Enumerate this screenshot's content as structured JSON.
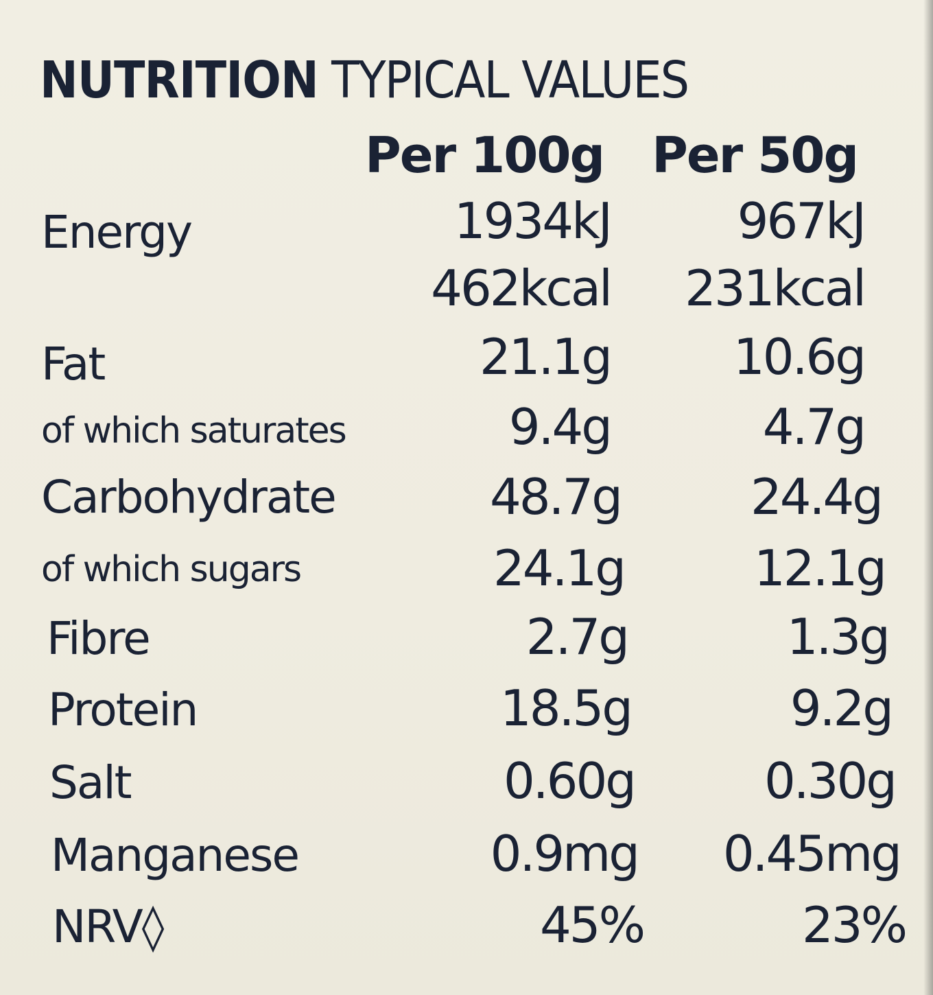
{
  "heading": {
    "bold": "NUTRITION",
    "light": "TYPICAL VALUES"
  },
  "columns": {
    "per_100g": "Per 100g",
    "per_50g": "Per 50g"
  },
  "rows": [
    {
      "label": "Energy",
      "per_100g": "1934kJ",
      "per_50g": "967kJ"
    },
    {
      "label": "",
      "per_100g": "462kcal",
      "per_50g": "231kcal"
    },
    {
      "label": "Fat",
      "per_100g": "21.1g",
      "per_50g": "10.6g"
    },
    {
      "label": "of which saturates",
      "per_100g": "9.4g",
      "per_50g": "4.7g"
    },
    {
      "label": "Carbohydrate",
      "per_100g": "48.7g",
      "per_50g": "24.4g"
    },
    {
      "label": "of which sugars",
      "per_100g": "24.1g",
      "per_50g": "12.1g"
    },
    {
      "label": "Fibre",
      "per_100g": "2.7g",
      "per_50g": "1.3g"
    },
    {
      "label": "Protein",
      "per_100g": "18.5g",
      "per_50g": "9.2g"
    },
    {
      "label": "Salt",
      "per_100g": "0.60g",
      "per_50g": "0.30g"
    },
    {
      "label": "Manganese",
      "per_100g": "0.9mg",
      "per_50g": "0.45mg"
    },
    {
      "label": "NRV◊",
      "per_100g": "45%",
      "per_50g": "23%"
    }
  ],
  "colors": {
    "background": "#efece0",
    "ink": "#1a2234"
  }
}
